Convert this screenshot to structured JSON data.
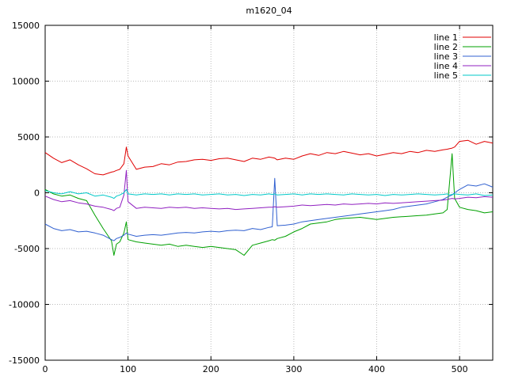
{
  "chart_data": {
    "type": "line",
    "title": "m1620_04",
    "xlabel": "",
    "ylabel": "",
    "xlim": [
      0,
      540
    ],
    "ylim": [
      -15000,
      15000
    ],
    "xticks": [
      0,
      100,
      200,
      300,
      400,
      500
    ],
    "yticks": [
      -15000,
      -10000,
      -5000,
      0,
      5000,
      10000,
      15000
    ],
    "grid": true,
    "legend_position": "top-right",
    "colors": {
      "grid": "#bbbbbb",
      "axis": "#000000",
      "background": "#ffffff"
    },
    "x": [
      0,
      10,
      20,
      30,
      40,
      50,
      60,
      70,
      80,
      83,
      86,
      90,
      95,
      98,
      100,
      110,
      120,
      130,
      140,
      150,
      160,
      170,
      180,
      190,
      200,
      210,
      220,
      230,
      240,
      250,
      260,
      270,
      274,
      277,
      280,
      290,
      300,
      310,
      320,
      330,
      340,
      350,
      360,
      370,
      380,
      390,
      400,
      410,
      420,
      430,
      440,
      450,
      460,
      470,
      480,
      485,
      488,
      491,
      494,
      500,
      510,
      520,
      530,
      540
    ],
    "series": [
      {
        "name": "line 1",
        "color": "#e00000",
        "values": [
          3600,
          3100,
          2700,
          2950,
          2500,
          2150,
          1700,
          1600,
          1850,
          1900,
          2000,
          2100,
          2600,
          4100,
          3300,
          2100,
          2300,
          2350,
          2600,
          2500,
          2750,
          2800,
          2950,
          3000,
          2900,
          3050,
          3100,
          2950,
          2800,
          3100,
          3000,
          3200,
          3150,
          3100,
          2950,
          3100,
          3000,
          3300,
          3500,
          3350,
          3600,
          3500,
          3700,
          3550,
          3400,
          3500,
          3300,
          3450,
          3600,
          3500,
          3700,
          3600,
          3800,
          3700,
          3850,
          3900,
          3950,
          4000,
          4100,
          4600,
          4700,
          4350,
          4600,
          4450
        ]
      },
      {
        "name": "line 2",
        "color": "#00a000",
        "values": [
          300,
          -100,
          -300,
          -200,
          -500,
          -700,
          -2000,
          -3200,
          -4300,
          -5600,
          -4600,
          -4400,
          -3600,
          -2600,
          -4200,
          -4400,
          -4500,
          -4600,
          -4700,
          -4600,
          -4800,
          -4700,
          -4800,
          -4900,
          -4800,
          -4900,
          -5000,
          -5100,
          -5600,
          -4700,
          -4500,
          -4300,
          -4200,
          -4250,
          -4100,
          -3900,
          -3500,
          -3200,
          -2800,
          -2700,
          -2600,
          -2400,
          -2300,
          -2250,
          -2200,
          -2300,
          -2400,
          -2300,
          -2200,
          -2150,
          -2100,
          -2050,
          -2000,
          -1900,
          -1800,
          -1500,
          1000,
          3500,
          -500,
          -1300,
          -1500,
          -1600,
          -1800,
          -1700
        ]
      },
      {
        "name": "line 3",
        "color": "#3060d0",
        "values": [
          -2800,
          -3200,
          -3400,
          -3300,
          -3500,
          -3450,
          -3600,
          -3800,
          -4200,
          -4300,
          -4100,
          -4000,
          -3800,
          -3600,
          -3700,
          -3900,
          -3800,
          -3750,
          -3800,
          -3700,
          -3600,
          -3550,
          -3600,
          -3500,
          -3450,
          -3500,
          -3400,
          -3350,
          -3400,
          -3200,
          -3300,
          -3100,
          -3050,
          1300,
          -2950,
          -2900,
          -2800,
          -2600,
          -2500,
          -2400,
          -2300,
          -2200,
          -2100,
          -2000,
          -1900,
          -1800,
          -1700,
          -1600,
          -1500,
          -1300,
          -1200,
          -1100,
          -1000,
          -800,
          -600,
          -400,
          -300,
          -200,
          0,
          300,
          700,
          600,
          800,
          500
        ]
      },
      {
        "name": "line 4",
        "color": "#9020c0",
        "values": [
          -300,
          -600,
          -800,
          -700,
          -900,
          -1000,
          -1200,
          -1300,
          -1500,
          -1600,
          -1400,
          -1300,
          -200,
          2000,
          -800,
          -1400,
          -1300,
          -1350,
          -1400,
          -1300,
          -1350,
          -1300,
          -1400,
          -1350,
          -1400,
          -1450,
          -1400,
          -1500,
          -1450,
          -1400,
          -1350,
          -1300,
          -1300,
          -1250,
          -1300,
          -1250,
          -1200,
          -1100,
          -1150,
          -1100,
          -1050,
          -1100,
          -1000,
          -1050,
          -1000,
          -950,
          -1000,
          -900,
          -950,
          -900,
          -850,
          -800,
          -750,
          -700,
          -650,
          -600,
          -550,
          -500,
          -550,
          -500,
          -400,
          -450,
          -350,
          -400
        ]
      },
      {
        "name": "line 5",
        "color": "#00c8c8",
        "values": [
          200,
          0,
          -100,
          100,
          -100,
          0,
          -300,
          -200,
          -400,
          -500,
          -300,
          -200,
          0,
          300,
          -100,
          -200,
          -100,
          -150,
          -100,
          -200,
          -100,
          -150,
          -100,
          -200,
          -150,
          -100,
          -200,
          -150,
          -250,
          -150,
          -200,
          -100,
          -150,
          -100,
          -200,
          -150,
          -100,
          -200,
          -100,
          -150,
          -100,
          -150,
          -200,
          -100,
          -150,
          -200,
          -150,
          -250,
          -150,
          -200,
          -150,
          -100,
          -150,
          -200,
          -150,
          -100,
          -200,
          -150,
          -100,
          -150,
          -200,
          -100,
          -250,
          -200
        ]
      }
    ]
  }
}
